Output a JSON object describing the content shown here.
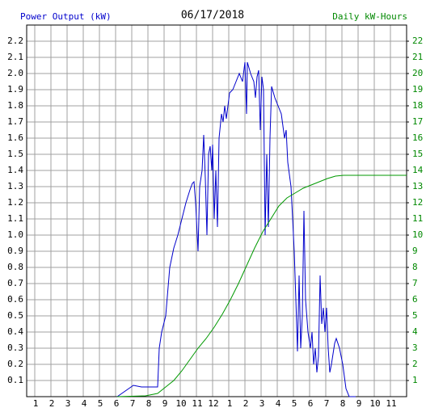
{
  "chart_data": {
    "type": "line",
    "title": "06/17/2018",
    "y_label": "Power Output (kW)",
    "y2_label": "Daily kW-Hours",
    "y_label_color": "#0000cc",
    "y2_label_color": "#008800",
    "xlim": [
      0.5,
      24
    ],
    "xticks": [
      1,
      2,
      3,
      4,
      5,
      6,
      7,
      8,
      9,
      10,
      11,
      12,
      {
        "value": 13,
        "label": "1"
      },
      {
        "value": 14,
        "label": "2"
      },
      {
        "value": 15,
        "label": "3"
      },
      {
        "value": 16,
        "label": "4"
      },
      {
        "value": 17,
        "label": "5"
      },
      {
        "value": 18,
        "label": "6"
      },
      {
        "value": 19,
        "label": "7"
      },
      {
        "value": 20,
        "label": "8"
      },
      {
        "value": 21,
        "label": "9"
      },
      {
        "value": 22,
        "label": "10"
      },
      {
        "value": 23,
        "label": "11"
      }
    ],
    "ylim": [
      0,
      2.3
    ],
    "yticks": [
      0.1,
      0.2,
      0.3,
      0.4,
      0.5,
      0.6,
      0.7,
      0.8,
      0.9,
      {
        "value": 1,
        "label": "1.0"
      },
      1.1,
      1.2,
      1.3,
      1.4,
      1.5,
      1.6,
      1.7,
      1.8,
      1.9,
      {
        "value": 2,
        "label": "2.0"
      },
      2.1,
      2.2
    ],
    "y2lim": [
      0,
      23
    ],
    "y2ticks": [
      1,
      2,
      3,
      4,
      5,
      6,
      7,
      8,
      9,
      10,
      11,
      12,
      13,
      14,
      15,
      16,
      17,
      18,
      19,
      20,
      21,
      22
    ],
    "grid": true,
    "series": [
      {
        "color": "#0000cc",
        "axis": "y",
        "x": [
          6.1,
          7.1,
          7.6,
          8.6,
          8.7,
          8.85,
          9.1,
          9.35,
          9.6,
          9.85,
          10.1,
          10.35,
          10.6,
          10.75,
          10.85,
          10.95,
          11.05,
          11.1,
          11.2,
          11.35,
          11.45,
          11.55,
          11.65,
          11.75,
          11.85,
          11.95,
          12,
          12.1,
          12.2,
          12.3,
          12.4,
          12.55,
          12.65,
          12.75,
          12.85,
          13.05,
          13.25,
          13.45,
          13.65,
          13.85,
          14,
          14.1,
          14.15,
          14.35,
          14.55,
          14.65,
          14.75,
          14.85,
          14.95,
          15.05,
          15.15,
          15.25,
          15.35,
          15.45,
          15.55,
          15.65,
          15.85,
          16.05,
          16.25,
          16.45,
          16.55,
          16.65,
          16.85,
          17.05,
          17.15,
          17.25,
          17.35,
          17.45,
          17.55,
          17.65,
          17.75,
          17.9,
          18.05,
          18.15,
          18.25,
          18.35,
          18.45,
          18.55,
          18.65,
          18.75,
          18.85,
          18.95,
          19.05,
          19.15,
          19.25,
          19.35,
          19.55,
          19.65,
          19.85,
          20.05,
          20.25,
          20.45,
          20.85
        ],
        "values": [
          0,
          0.07,
          0.06,
          0.06,
          0.3,
          0.4,
          0.5,
          0.8,
          0.92,
          1.0,
          1.1,
          1.2,
          1.28,
          1.32,
          1.33,
          1.2,
          1.0,
          0.9,
          1.3,
          1.4,
          1.62,
          1.35,
          1.0,
          1.5,
          1.55,
          1.4,
          1.56,
          1.1,
          1.4,
          1.05,
          1.6,
          1.75,
          1.7,
          1.8,
          1.72,
          1.88,
          1.9,
          1.95,
          2.0,
          1.95,
          2.07,
          1.75,
          2.07,
          2.0,
          1.95,
          1.85,
          1.98,
          2.02,
          1.65,
          1.98,
          1.9,
          1.0,
          1.5,
          1.05,
          1.6,
          1.92,
          1.85,
          1.8,
          1.75,
          1.6,
          1.65,
          1.45,
          1.3,
          0.9,
          0.6,
          0.28,
          0.75,
          0.3,
          0.5,
          1.15,
          0.6,
          0.4,
          0.3,
          0.4,
          0.2,
          0.3,
          0.15,
          0.25,
          0.75,
          0.45,
          0.55,
          0.4,
          0.55,
          0.3,
          0.15,
          0.2,
          0.33,
          0.36,
          0.3,
          0.2,
          0.05,
          0,
          0
        ]
      },
      {
        "color": "#009900",
        "axis": "y2",
        "x": [
          6.1,
          7.85,
          8.6,
          9.1,
          9.6,
          10.1,
          10.6,
          11.1,
          11.6,
          12.1,
          12.6,
          13.1,
          13.6,
          14.1,
          14.6,
          15.1,
          15.6,
          16.1,
          16.6,
          17.1,
          17.6,
          18.1,
          18.6,
          19.1,
          19.6,
          20.1,
          24
        ],
        "values": [
          0,
          0.05,
          0.2,
          0.6,
          1.0,
          1.6,
          2.3,
          3.0,
          3.6,
          4.3,
          5.1,
          6.0,
          7.0,
          8.1,
          9.2,
          10.2,
          11.0,
          11.8,
          12.3,
          12.6,
          12.9,
          13.1,
          13.3,
          13.5,
          13.65,
          13.7,
          13.7
        ]
      }
    ]
  }
}
